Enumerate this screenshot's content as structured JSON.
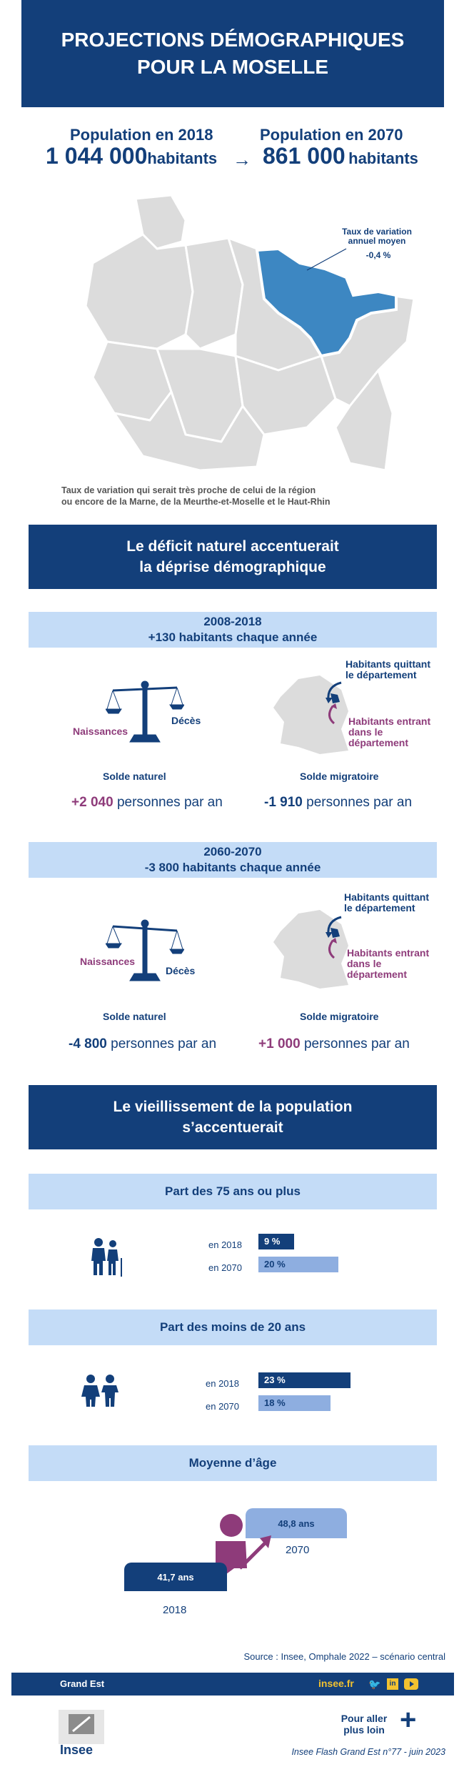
{
  "title": {
    "line1": "PROJECTIONS DÉMOGRAPHIQUES",
    "line2": "POUR LA MOSELLE"
  },
  "population": {
    "label_2018": "Population en 2018",
    "value_2018": "1 044 000",
    "unit_2018": "habitants",
    "label_2070": "Population en 2070",
    "value_2070": "861 000",
    "unit_2070": "habitants",
    "arrow": "→"
  },
  "map": {
    "callout_title": "Taux de variation annuel moyen",
    "callout_value": "-0,4 %",
    "note_line1": "Taux de variation qui serait très proche de celui de la région",
    "note_line2": "ou encore de la Marne, de la Meurthe-et-Moselle et le Haut-Rhin"
  },
  "section1": {
    "line1": "Le déficit naturel accentuerait",
    "line2": "la déprise démographique"
  },
  "period1": {
    "years": "2008-2018",
    "summary": "+130 habitants chaque année",
    "naissances": "Naissances",
    "deces": "Décès",
    "solde_naturel": "Solde naturel",
    "quitting": "Habitants quittant le département",
    "entering": "Habitants entrant dans le département",
    "solde_migratoire": "Solde migratoire",
    "natural_value": "+2 040",
    "migration_value": "-1 910",
    "per_year": "personnes par an"
  },
  "period2": {
    "years": "2060-2070",
    "summary": "-3 800 habitants chaque année",
    "naissances": "Naissances",
    "deces": "Décès",
    "solde_naturel": "Solde naturel",
    "quitting": "Habitants quittant le département",
    "entering": "Habitants entrant dans le département",
    "solde_migratoire": "Solde migratoire",
    "natural_value": "-4 800",
    "migration_value": "+1 000",
    "per_year": "personnes par an"
  },
  "section2": {
    "line1": "Le vieillissement de la population",
    "line2": "s’accentuerait"
  },
  "part75": {
    "title": "Part des 75 ans ou plus",
    "label_2018": "en 2018",
    "value_2018": "9 %",
    "pct_2018": 9,
    "label_2070": "en 2070",
    "value_2070": "20 %",
    "pct_2070": 20
  },
  "part20": {
    "title": "Part des moins de 20 ans",
    "label_2018": "en 2018",
    "value_2018": "23 %",
    "pct_2018": 23,
    "label_2070": "en 2070",
    "value_2070": "18 %",
    "pct_2070": 18
  },
  "age": {
    "title": "Moyenne d’âge",
    "value_2018": "41,7 ans",
    "year_2018": "2018",
    "value_2070": "48,8 ans",
    "year_2070": "2070"
  },
  "source": "Source :  Insee, Omphale 2022 – scénario central",
  "footer": {
    "region": "Grand Est",
    "site": "insee.fr",
    "more_line1": "Pour aller",
    "more_line2": "plus loin",
    "more_icon": "+",
    "logo_text": "Insee",
    "publication": "Insee Flash Grand Est n°77 - juin 2023"
  },
  "colors": {
    "navy": "#133f7a",
    "light_blue": "#c4dcf7",
    "purple": "#8e3b7a",
    "map_highlight": "#3d87c2",
    "bar_light": "#8eaee0"
  }
}
